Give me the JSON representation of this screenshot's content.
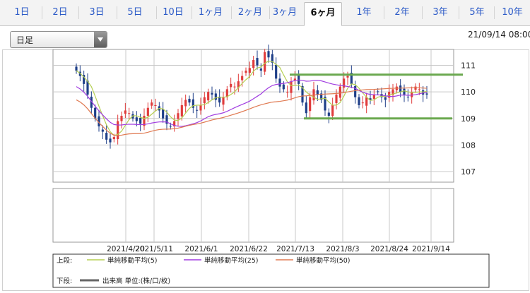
{
  "tabs": [
    {
      "label": "1日",
      "active": false
    },
    {
      "label": "2日",
      "active": false
    },
    {
      "label": "3日",
      "active": false
    },
    {
      "label": "5日",
      "active": false
    },
    {
      "label": "10日",
      "active": false
    },
    {
      "label": "1ヶ月",
      "active": false
    },
    {
      "label": "2ヶ月",
      "active": false
    },
    {
      "label": "3ヶ月",
      "active": false
    },
    {
      "label": "6ヶ月",
      "active": true
    },
    {
      "label": "1年",
      "active": false
    },
    {
      "label": "2年",
      "active": false
    },
    {
      "label": "3年",
      "active": false
    },
    {
      "label": "5年",
      "active": false
    },
    {
      "label": "10年",
      "active": false
    }
  ],
  "period_select": {
    "value": "日足"
  },
  "timestamp": "21/09/14 08:00",
  "colors": {
    "accent": "#2a59c7",
    "up": "#e03c3c",
    "down": "#1f3f88",
    "ma5": "#b5cf52",
    "ma25": "#a03ce0",
    "ma50": "#e07a52",
    "support_lines": "#6aa84f",
    "grid": "#c8c8c8"
  },
  "chart_data": {
    "type": "candlestick",
    "yticks": [
      107,
      108,
      109,
      110,
      111
    ],
    "ylim": [
      106.6,
      111.6
    ],
    "xtick_labels": [
      "2021/4/20",
      "2021/5/11",
      "2021/6/1",
      "2021/6/22",
      "2021/7/13",
      "2021/8/3",
      "2021/8/24",
      "2021/9/14"
    ],
    "horizontal_lines": [
      {
        "y": 110.65,
        "from": "2021/7/13",
        "to": "2021/9/14"
      },
      {
        "y": 109.0,
        "from": "2021/7/13",
        "to": "2021/9/14"
      }
    ],
    "close_series": [
      110.8,
      110.6,
      110.3,
      109.9,
      109.4,
      109.0,
      108.7,
      108.5,
      108.2,
      108.1,
      108.3,
      108.9,
      109.1,
      109.3,
      109.2,
      109.0,
      108.9,
      108.8,
      109.1,
      109.4,
      109.6,
      109.5,
      109.3,
      109.0,
      108.8,
      108.7,
      108.9,
      109.2,
      109.5,
      109.7,
      109.6,
      109.4,
      109.3,
      109.5,
      109.8,
      110.0,
      109.9,
      109.7,
      109.6,
      109.8,
      110.1,
      110.3,
      110.2,
      110.4,
      110.6,
      110.8,
      110.9,
      111.2,
      111.0,
      110.8,
      111.5,
      111.3,
      111.1,
      110.5,
      110.2,
      110.1,
      110.0,
      110.4,
      110.5,
      110.3,
      109.6,
      109.2,
      109.8,
      110.1,
      109.9,
      109.7,
      109.3,
      109.1,
      109.5,
      109.9,
      110.2,
      110.5,
      110.6,
      110.3,
      109.8,
      109.5,
      109.6,
      109.8,
      109.7,
      109.9,
      110.0,
      109.8,
      109.7,
      110.0,
      110.1,
      110.2,
      110.0,
      109.9,
      109.8,
      110.0,
      110.2,
      110.1,
      109.9,
      109.9
    ],
    "moving_averages": [
      {
        "name": "単純移動平均(5)",
        "color": "#b5cf52"
      },
      {
        "name": "単純移動平均(25)",
        "color": "#a03ce0"
      },
      {
        "name": "単純移動平均(50)",
        "color": "#e07a52"
      }
    ],
    "volume_panel": {
      "label": "出来高 単位:(株/口/枚)",
      "color": "#666666"
    },
    "legend": {
      "upper_label": "上段:",
      "lower_label": "下段:"
    }
  }
}
